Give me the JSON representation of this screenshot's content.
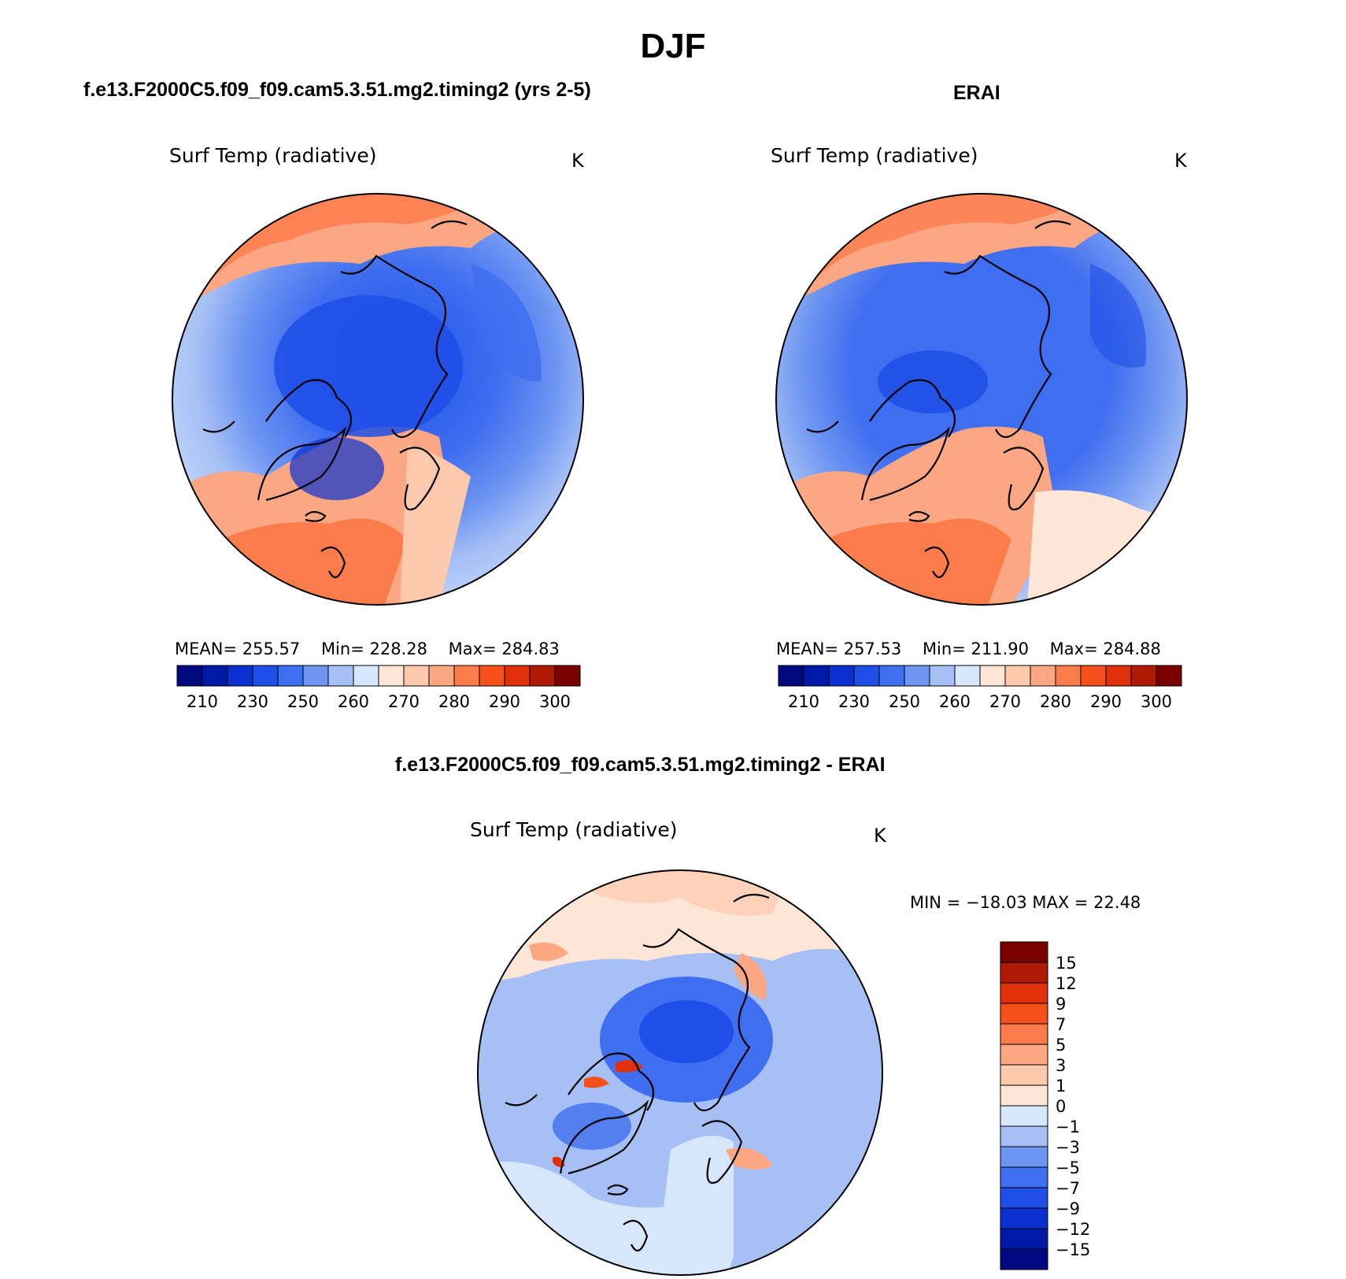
{
  "title": "DJF",
  "panels": [
    {
      "case": "f.e13.F2000C5.f09_f09.cam5.3.51.mg2.timing2 (yrs 2-5)",
      "variable": "Surf Temp (radiative)",
      "units": "K",
      "stats": {
        "mean_label": "MEAN=",
        "mean": "255.57",
        "min_label": "Min=",
        "min": "228.28",
        "max_label": "Max=",
        "max": "284.83"
      }
    },
    {
      "case": "ERAI",
      "variable": "Surf Temp (radiative)",
      "units": "K",
      "stats": {
        "mean_label": "MEAN=",
        "mean": "257.53",
        "min_label": "Min=",
        "min": "211.90",
        "max_label": "Max=",
        "max": "284.88"
      }
    }
  ],
  "abs_colorbar": {
    "colors": [
      "#000a80",
      "#0019a8",
      "#0a30d0",
      "#1f4ee8",
      "#3f6ef0",
      "#6e95f2",
      "#a6c0f6",
      "#d7e7fb",
      "#fde6d6",
      "#fdc9ae",
      "#fca783",
      "#fc7b4a",
      "#f5501c",
      "#e0300c",
      "#b01a04",
      "#7a0000"
    ],
    "labels": [
      "210",
      "230",
      "250",
      "260",
      "270",
      "280",
      "290",
      "300"
    ]
  },
  "diff": {
    "case": "f.e13.F2000C5.f09_f09.cam5.3.51.mg2.timing2 - ERAI",
    "variable": "Surf Temp (radiative)",
    "units": "K",
    "minmax": "MIN = −18.03 MAX =   22.48",
    "colorbar": {
      "colors": [
        "#7a0000",
        "#b01a04",
        "#e0300c",
        "#f5501c",
        "#fc7b4a",
        "#fca783",
        "#fdc9ae",
        "#fde6d6",
        "#d7e7fb",
        "#a6c0f6",
        "#6e95f2",
        "#3f6ef0",
        "#1f4ee8",
        "#0a30d0",
        "#0019a8",
        "#000a80"
      ],
      "labels": [
        "15",
        "12",
        "9",
        "7",
        "5",
        "3",
        "1",
        "0",
        "−1",
        "−3",
        "−5",
        "−7",
        "−9",
        "−12",
        "−15"
      ]
    }
  }
}
